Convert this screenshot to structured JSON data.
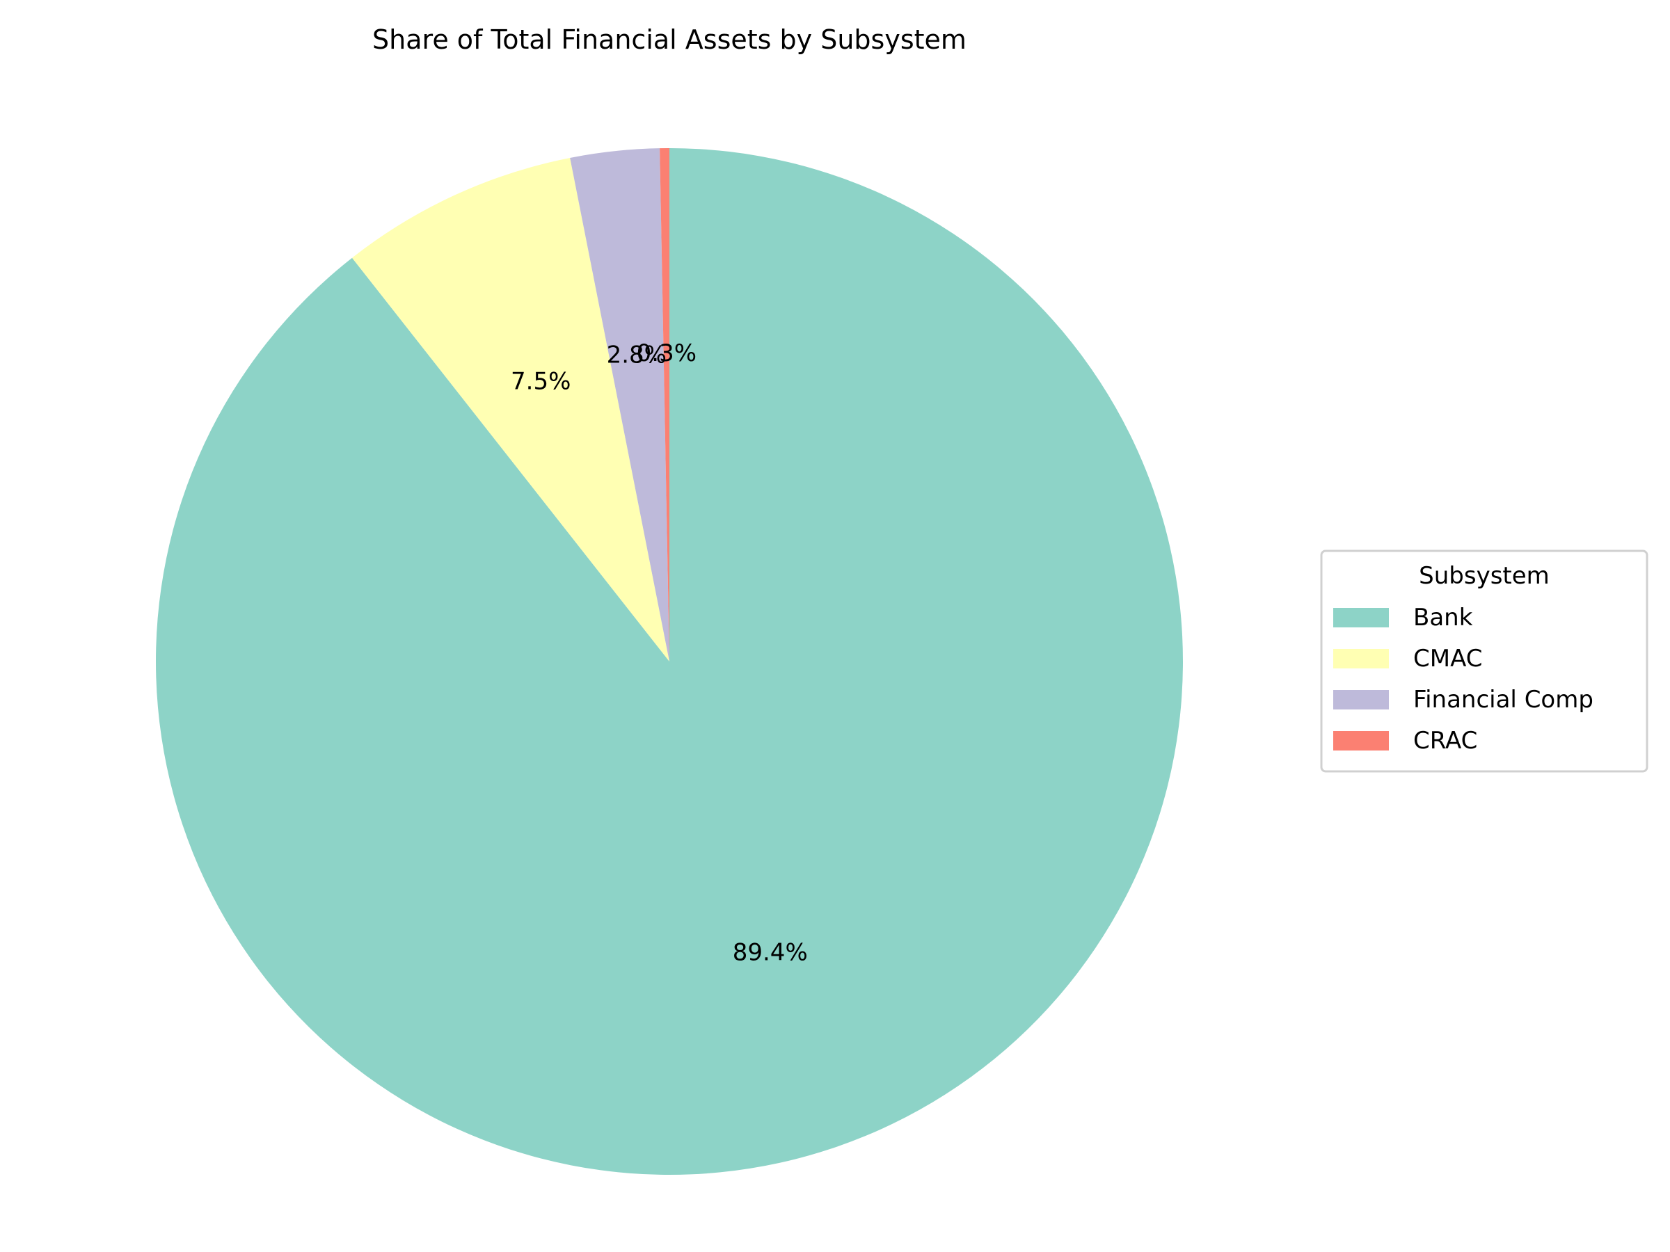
{
  "chart_data": {
    "type": "pie",
    "title": "Share of Total Financial Assets by Subsystem",
    "categories": [
      "Bank",
      "CMAC",
      "Financial Comp",
      "CRAC"
    ],
    "values": [
      89.4,
      7.5,
      2.8,
      0.3
    ],
    "value_labels": [
      "89.4%",
      "7.5%",
      "2.8%",
      "0.3%"
    ],
    "colors": [
      "#8dd3c7",
      "#ffffb3",
      "#bebada",
      "#fb8072"
    ],
    "start_angle_deg": 90,
    "direction": "clockwise",
    "legend": {
      "title": "Subsystem",
      "placement": "center-right",
      "entries": [
        "Bank",
        "CMAC",
        "Financial Comp",
        "CRAC"
      ]
    }
  }
}
